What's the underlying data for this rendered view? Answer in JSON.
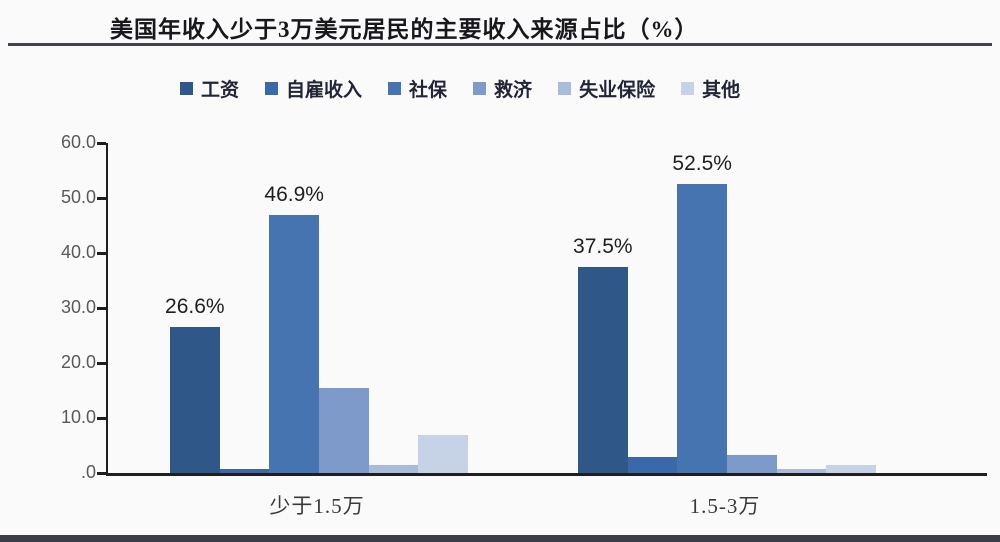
{
  "page": {
    "title": "美国年收入少于3万美元居民的主要收入来源占比（%）"
  },
  "chart_data": {
    "type": "bar",
    "title": "美国年收入少于3万美元居民的主要收入来源占比（%）",
    "categories": [
      "少于1.5万",
      "1.5-3万"
    ],
    "series": [
      {
        "name": "工资",
        "color": "#2f5788",
        "values": [
          26.6,
          37.5
        ],
        "data_labels": [
          "26.6%",
          "37.5%"
        ]
      },
      {
        "name": "自雇收入",
        "color": "#3a68ab",
        "values": [
          0.8,
          3.0
        ],
        "data_labels": [
          null,
          null
        ]
      },
      {
        "name": "社保",
        "color": "#4674b0",
        "values": [
          46.9,
          52.5
        ],
        "data_labels": [
          "46.9%",
          "52.5%"
        ]
      },
      {
        "name": "救济",
        "color": "#7e9aca",
        "values": [
          15.4,
          3.3
        ],
        "data_labels": [
          null,
          null
        ]
      },
      {
        "name": "失业保险",
        "color": "#a9bcdc",
        "values": [
          1.4,
          0.8
        ],
        "data_labels": [
          null,
          null
        ]
      },
      {
        "name": "其他",
        "color": "#c6d2e6",
        "values": [
          7.0,
          1.4
        ],
        "data_labels": [
          null,
          null
        ]
      }
    ],
    "xlabel": "",
    "ylabel": "",
    "ylim": [
      0,
      60
    ],
    "ytick_labels": [
      "60.0",
      "50.0",
      "40.0",
      "30.0",
      "20.0",
      "10.0",
      ".0"
    ],
    "grid": false,
    "legend_position": "top",
    "axis_color": "#1f1f1f"
  }
}
